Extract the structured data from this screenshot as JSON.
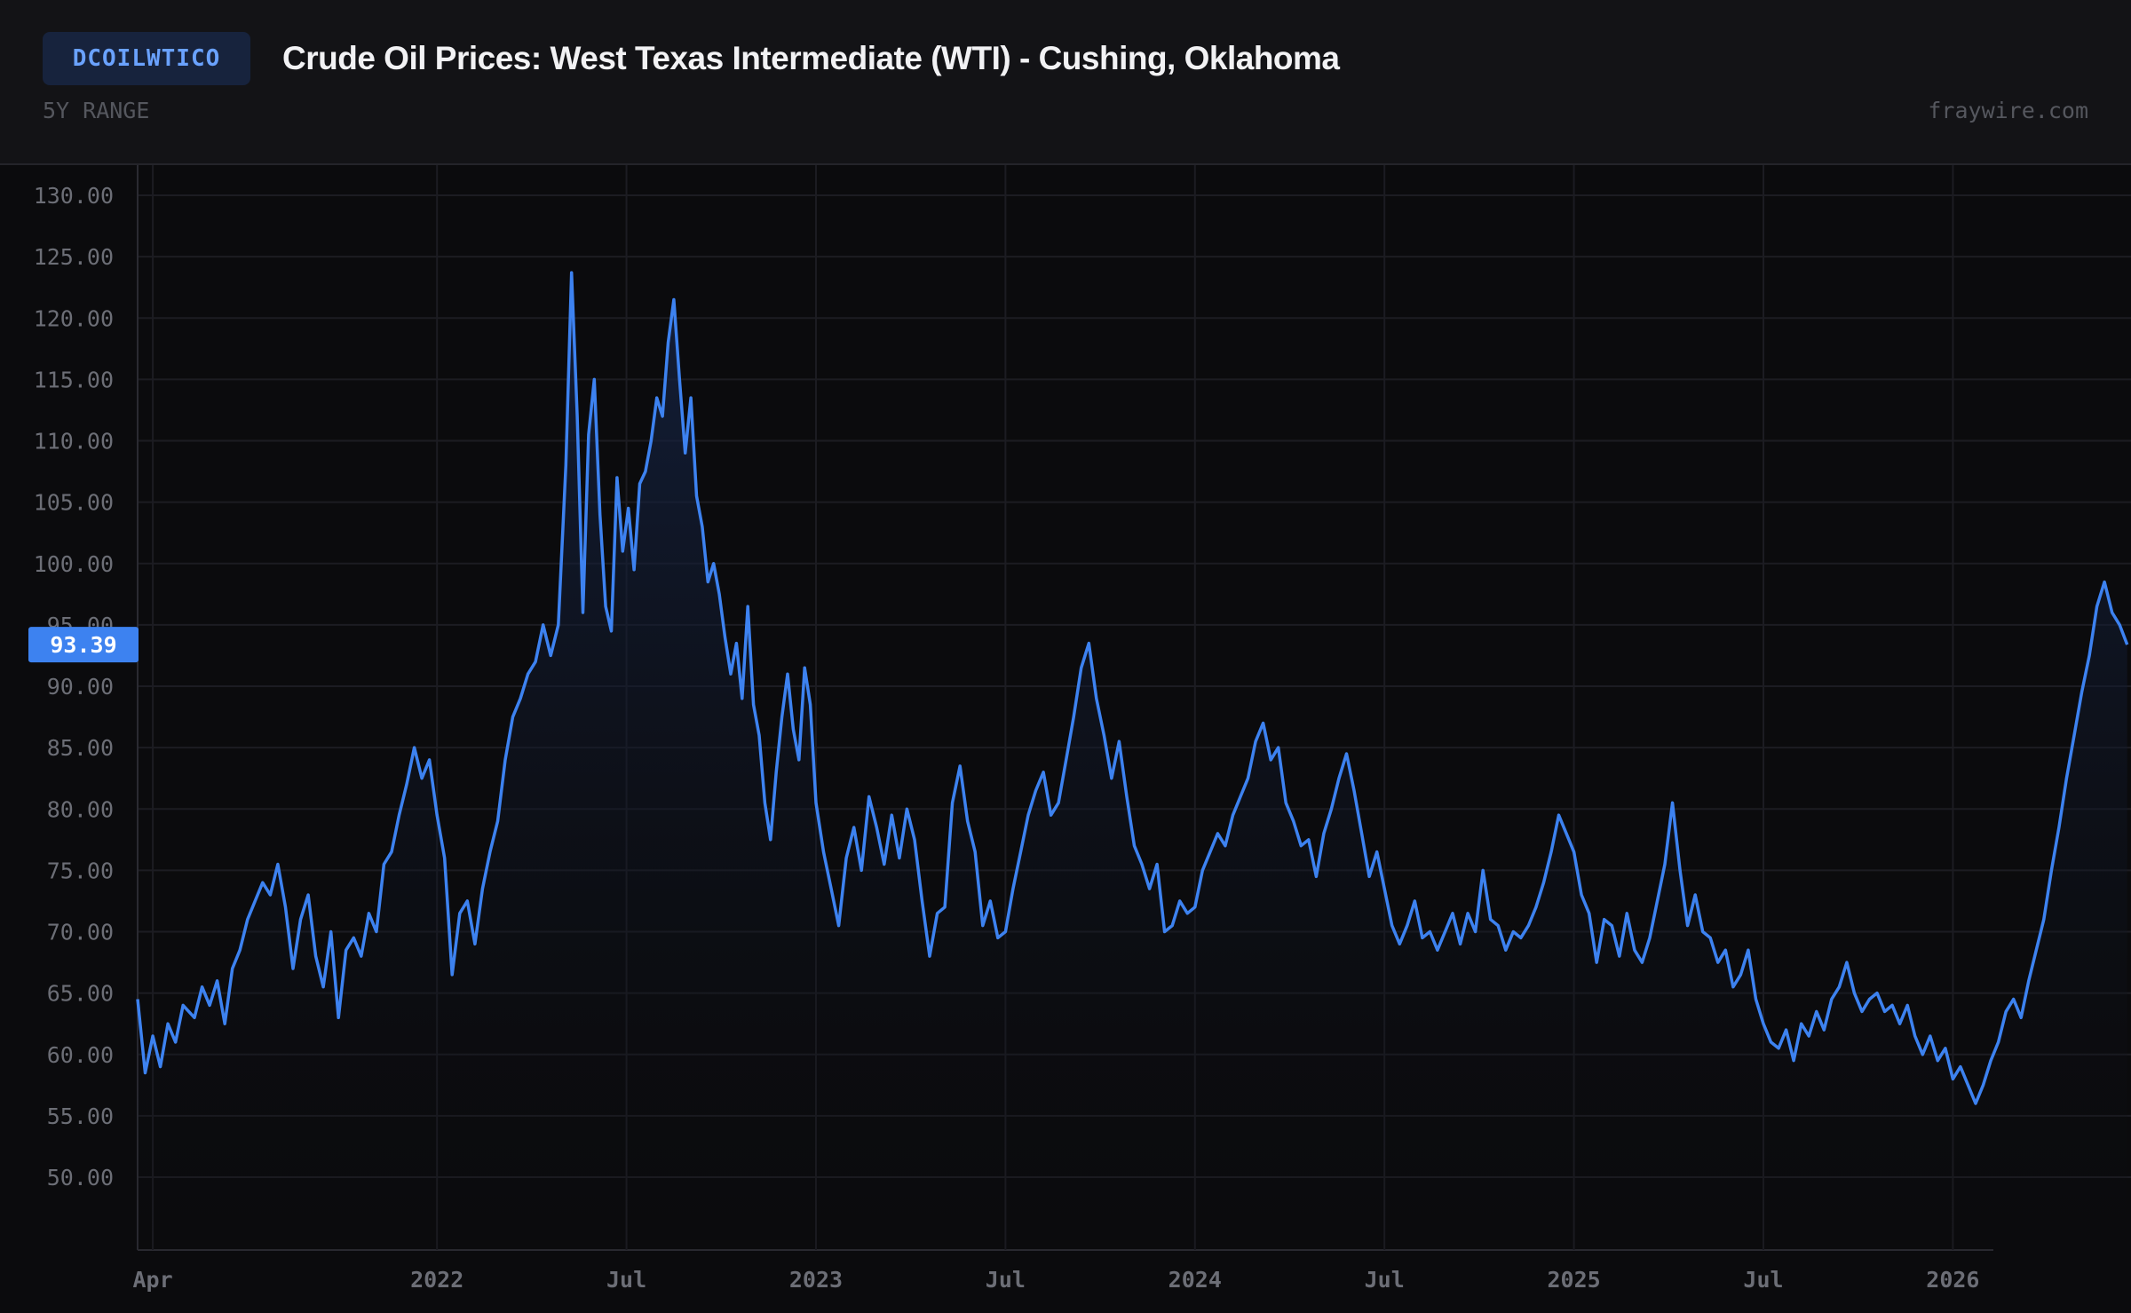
{
  "header": {
    "symbol": "DCOILWTICO",
    "title": "Crude Oil Prices: West Texas Intermediate (WTI) - Cushing, Oklahoma",
    "range": "5Y RANGE",
    "site": "fraywire.com"
  },
  "chart_data": {
    "type": "area",
    "series_name": "DCOILWTICO",
    "ylim": [
      47,
      132
    ],
    "y_ticks": [
      "50.00",
      "55.00",
      "60.00",
      "65.00",
      "70.00",
      "75.00",
      "80.00",
      "85.00",
      "90.00",
      "95.00",
      "100.00",
      "105.00",
      "110.00",
      "115.00",
      "120.00",
      "125.00",
      "130.00"
    ],
    "x_ticks": [
      {
        "label": "Apr",
        "t": 2021.25
      },
      {
        "label": "2022",
        "t": 2022.0
      },
      {
        "label": "Jul",
        "t": 2022.5
      },
      {
        "label": "2023",
        "t": 2023.0
      },
      {
        "label": "Jul",
        "t": 2023.5
      },
      {
        "label": "2024",
        "t": 2024.0
      },
      {
        "label": "Jul",
        "t": 2024.5
      },
      {
        "label": "2025",
        "t": 2025.0
      },
      {
        "label": "Jul",
        "t": 2025.5
      },
      {
        "label": "2026",
        "t": 2026.0
      }
    ],
    "x_range": [
      2021.21,
      2026.47
    ],
    "last_value": "93.39",
    "last_value_level": 93.39,
    "colors": {
      "line": "#3d82f0",
      "tag": "#3d82f0",
      "grid": "#1c1c22",
      "fill_top": "#16264a"
    },
    "points": [
      [
        2021.21,
        64.5
      ],
      [
        2021.23,
        58.5
      ],
      [
        2021.25,
        61.5
      ],
      [
        2021.27,
        59.0
      ],
      [
        2021.29,
        62.5
      ],
      [
        2021.31,
        61.0
      ],
      [
        2021.33,
        64.0
      ],
      [
        2021.36,
        63.0
      ],
      [
        2021.38,
        65.5
      ],
      [
        2021.4,
        64.0
      ],
      [
        2021.42,
        66.0
      ],
      [
        2021.44,
        62.5
      ],
      [
        2021.46,
        67.0
      ],
      [
        2021.48,
        68.5
      ],
      [
        2021.5,
        71.0
      ],
      [
        2021.52,
        72.5
      ],
      [
        2021.54,
        74.0
      ],
      [
        2021.56,
        73.0
      ],
      [
        2021.58,
        75.5
      ],
      [
        2021.6,
        72.0
      ],
      [
        2021.62,
        67.0
      ],
      [
        2021.64,
        71.0
      ],
      [
        2021.66,
        73.0
      ],
      [
        2021.68,
        68.0
      ],
      [
        2021.7,
        65.5
      ],
      [
        2021.72,
        70.0
      ],
      [
        2021.74,
        63.0
      ],
      [
        2021.76,
        68.5
      ],
      [
        2021.78,
        69.5
      ],
      [
        2021.8,
        68.0
      ],
      [
        2021.82,
        71.5
      ],
      [
        2021.84,
        70.0
      ],
      [
        2021.86,
        75.5
      ],
      [
        2021.88,
        76.5
      ],
      [
        2021.9,
        79.5
      ],
      [
        2021.92,
        82.0
      ],
      [
        2021.94,
        85.0
      ],
      [
        2021.96,
        82.5
      ],
      [
        2021.98,
        84.0
      ],
      [
        2022.0,
        79.5
      ],
      [
        2022.02,
        76.0
      ],
      [
        2022.04,
        66.5
      ],
      [
        2022.06,
        71.5
      ],
      [
        2022.08,
        72.5
      ],
      [
        2022.1,
        69.0
      ],
      [
        2022.12,
        73.5
      ],
      [
        2022.14,
        76.5
      ],
      [
        2022.16,
        79.0
      ],
      [
        2022.18,
        84.0
      ],
      [
        2022.2,
        87.5
      ],
      [
        2022.22,
        89.0
      ],
      [
        2022.24,
        91.0
      ],
      [
        2022.26,
        92.0
      ],
      [
        2022.28,
        95.0
      ],
      [
        2022.3,
        92.5
      ],
      [
        2022.32,
        95.0
      ],
      [
        2022.34,
        108.0
      ],
      [
        2022.355,
        123.7
      ],
      [
        2022.37,
        112.0
      ],
      [
        2022.385,
        96.0
      ],
      [
        2022.4,
        110.5
      ],
      [
        2022.415,
        115.0
      ],
      [
        2022.43,
        104.0
      ],
      [
        2022.445,
        96.5
      ],
      [
        2022.46,
        94.5
      ],
      [
        2022.475,
        107.0
      ],
      [
        2022.49,
        101.0
      ],
      [
        2022.505,
        104.5
      ],
      [
        2022.52,
        99.5
      ],
      [
        2022.535,
        106.5
      ],
      [
        2022.55,
        107.5
      ],
      [
        2022.565,
        110.0
      ],
      [
        2022.58,
        113.5
      ],
      [
        2022.595,
        112.0
      ],
      [
        2022.61,
        118.0
      ],
      [
        2022.625,
        121.5
      ],
      [
        2022.64,
        115.0
      ],
      [
        2022.655,
        109.0
      ],
      [
        2022.67,
        113.5
      ],
      [
        2022.685,
        105.5
      ],
      [
        2022.7,
        103.0
      ],
      [
        2022.715,
        98.5
      ],
      [
        2022.73,
        100.0
      ],
      [
        2022.745,
        97.5
      ],
      [
        2022.76,
        94.0
      ],
      [
        2022.775,
        91.0
      ],
      [
        2022.79,
        93.5
      ],
      [
        2022.805,
        89.0
      ],
      [
        2022.82,
        96.5
      ],
      [
        2022.835,
        88.5
      ],
      [
        2022.85,
        86.0
      ],
      [
        2022.865,
        80.5
      ],
      [
        2022.88,
        77.5
      ],
      [
        2022.895,
        83.0
      ],
      [
        2022.91,
        87.5
      ],
      [
        2022.925,
        91.0
      ],
      [
        2022.94,
        86.5
      ],
      [
        2022.955,
        84.0
      ],
      [
        2022.97,
        91.5
      ],
      [
        2022.985,
        88.5
      ],
      [
        2023.0,
        80.5
      ],
      [
        2023.02,
        76.5
      ],
      [
        2023.04,
        73.5
      ],
      [
        2023.06,
        70.5
      ],
      [
        2023.08,
        76.0
      ],
      [
        2023.1,
        78.5
      ],
      [
        2023.12,
        75.0
      ],
      [
        2023.14,
        81.0
      ],
      [
        2023.16,
        78.5
      ],
      [
        2023.18,
        75.5
      ],
      [
        2023.2,
        79.5
      ],
      [
        2023.22,
        76.0
      ],
      [
        2023.24,
        80.0
      ],
      [
        2023.26,
        77.5
      ],
      [
        2023.28,
        72.5
      ],
      [
        2023.3,
        68.0
      ],
      [
        2023.32,
        71.5
      ],
      [
        2023.34,
        72.0
      ],
      [
        2023.36,
        80.5
      ],
      [
        2023.38,
        83.5
      ],
      [
        2023.4,
        79.0
      ],
      [
        2023.42,
        76.5
      ],
      [
        2023.44,
        70.5
      ],
      [
        2023.46,
        72.5
      ],
      [
        2023.48,
        69.5
      ],
      [
        2023.5,
        70.0
      ],
      [
        2023.52,
        73.5
      ],
      [
        2023.54,
        76.5
      ],
      [
        2023.56,
        79.5
      ],
      [
        2023.58,
        81.5
      ],
      [
        2023.6,
        83.0
      ],
      [
        2023.62,
        79.5
      ],
      [
        2023.64,
        80.5
      ],
      [
        2023.66,
        84.0
      ],
      [
        2023.68,
        87.5
      ],
      [
        2023.7,
        91.5
      ],
      [
        2023.72,
        93.5
      ],
      [
        2023.74,
        89.0
      ],
      [
        2023.76,
        86.0
      ],
      [
        2023.78,
        82.5
      ],
      [
        2023.8,
        85.5
      ],
      [
        2023.82,
        81.0
      ],
      [
        2023.84,
        77.0
      ],
      [
        2023.86,
        75.5
      ],
      [
        2023.88,
        73.5
      ],
      [
        2023.9,
        75.5
      ],
      [
        2023.92,
        70.0
      ],
      [
        2023.94,
        70.5
      ],
      [
        2023.96,
        72.5
      ],
      [
        2023.98,
        71.5
      ],
      [
        2024.0,
        72.0
      ],
      [
        2024.02,
        75.0
      ],
      [
        2024.04,
        76.5
      ],
      [
        2024.06,
        78.0
      ],
      [
        2024.08,
        77.0
      ],
      [
        2024.1,
        79.5
      ],
      [
        2024.12,
        81.0
      ],
      [
        2024.14,
        82.5
      ],
      [
        2024.16,
        85.5
      ],
      [
        2024.18,
        87.0
      ],
      [
        2024.2,
        84.0
      ],
      [
        2024.22,
        85.0
      ],
      [
        2024.24,
        80.5
      ],
      [
        2024.26,
        79.0
      ],
      [
        2024.28,
        77.0
      ],
      [
        2024.3,
        77.5
      ],
      [
        2024.32,
        74.5
      ],
      [
        2024.34,
        78.0
      ],
      [
        2024.36,
        80.0
      ],
      [
        2024.38,
        82.5
      ],
      [
        2024.4,
        84.5
      ],
      [
        2024.42,
        81.5
      ],
      [
        2024.44,
        78.0
      ],
      [
        2024.46,
        74.5
      ],
      [
        2024.48,
        76.5
      ],
      [
        2024.5,
        73.5
      ],
      [
        2024.52,
        70.5
      ],
      [
        2024.54,
        69.0
      ],
      [
        2024.56,
        70.5
      ],
      [
        2024.58,
        72.5
      ],
      [
        2024.6,
        69.5
      ],
      [
        2024.62,
        70.0
      ],
      [
        2024.64,
        68.5
      ],
      [
        2024.66,
        70.0
      ],
      [
        2024.68,
        71.5
      ],
      [
        2024.7,
        69.0
      ],
      [
        2024.72,
        71.5
      ],
      [
        2024.74,
        70.0
      ],
      [
        2024.76,
        75.0
      ],
      [
        2024.78,
        71.0
      ],
      [
        2024.8,
        70.5
      ],
      [
        2024.82,
        68.5
      ],
      [
        2024.84,
        70.0
      ],
      [
        2024.86,
        69.5
      ],
      [
        2024.88,
        70.5
      ],
      [
        2024.9,
        72.0
      ],
      [
        2024.92,
        74.0
      ],
      [
        2024.94,
        76.5
      ],
      [
        2024.96,
        79.5
      ],
      [
        2024.98,
        78.0
      ],
      [
        2025.0,
        76.5
      ],
      [
        2025.02,
        73.0
      ],
      [
        2025.04,
        71.5
      ],
      [
        2025.06,
        67.5
      ],
      [
        2025.08,
        71.0
      ],
      [
        2025.1,
        70.5
      ],
      [
        2025.12,
        68.0
      ],
      [
        2025.14,
        71.5
      ],
      [
        2025.16,
        68.5
      ],
      [
        2025.18,
        67.5
      ],
      [
        2025.2,
        69.5
      ],
      [
        2025.22,
        72.5
      ],
      [
        2025.24,
        75.5
      ],
      [
        2025.26,
        80.5
      ],
      [
        2025.28,
        75.0
      ],
      [
        2025.3,
        70.5
      ],
      [
        2025.32,
        73.0
      ],
      [
        2025.34,
        70.0
      ],
      [
        2025.36,
        69.5
      ],
      [
        2025.38,
        67.5
      ],
      [
        2025.4,
        68.5
      ],
      [
        2025.42,
        65.5
      ],
      [
        2025.44,
        66.5
      ],
      [
        2025.46,
        68.5
      ],
      [
        2025.48,
        64.5
      ],
      [
        2025.5,
        62.5
      ],
      [
        2025.52,
        61.0
      ],
      [
        2025.54,
        60.5
      ],
      [
        2025.56,
        62.0
      ],
      [
        2025.58,
        59.5
      ],
      [
        2025.6,
        62.5
      ],
      [
        2025.62,
        61.5
      ],
      [
        2025.64,
        63.5
      ],
      [
        2025.66,
        62.0
      ],
      [
        2025.68,
        64.5
      ],
      [
        2025.7,
        65.5
      ],
      [
        2025.72,
        67.5
      ],
      [
        2025.74,
        65.0
      ],
      [
        2025.76,
        63.5
      ],
      [
        2025.78,
        64.5
      ],
      [
        2025.8,
        65.0
      ],
      [
        2025.82,
        63.5
      ],
      [
        2025.84,
        64.0
      ],
      [
        2025.86,
        62.5
      ],
      [
        2025.88,
        64.0
      ],
      [
        2025.9,
        61.5
      ],
      [
        2025.92,
        60.0
      ],
      [
        2025.94,
        61.5
      ],
      [
        2025.96,
        59.5
      ],
      [
        2025.98,
        60.5
      ],
      [
        2026.0,
        58.0
      ],
      [
        2026.02,
        59.0
      ],
      [
        2026.04,
        57.5
      ],
      [
        2026.06,
        56.0
      ],
      [
        2026.08,
        57.5
      ],
      [
        2026.1,
        59.5
      ],
      [
        2026.12,
        61.0
      ],
      [
        2026.14,
        63.5
      ],
      [
        2026.16,
        64.5
      ],
      [
        2026.18,
        63.0
      ],
      [
        2026.2,
        66.0
      ],
      [
        2026.22,
        68.5
      ],
      [
        2026.24,
        71.0
      ],
      [
        2026.26,
        75.0
      ],
      [
        2026.28,
        78.5
      ],
      [
        2026.3,
        82.5
      ],
      [
        2026.32,
        86.0
      ],
      [
        2026.34,
        89.5
      ],
      [
        2026.36,
        92.5
      ],
      [
        2026.38,
        96.5
      ],
      [
        2026.4,
        98.5
      ],
      [
        2026.42,
        96.0
      ],
      [
        2026.44,
        95.0
      ],
      [
        2026.46,
        93.39
      ]
    ]
  }
}
